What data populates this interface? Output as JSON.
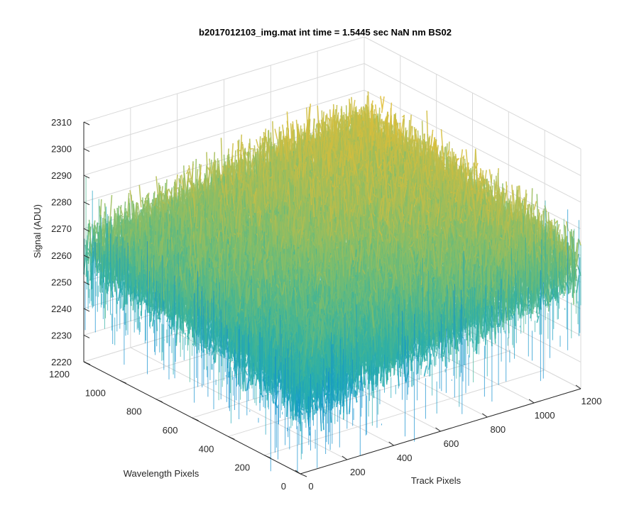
{
  "chart_data": {
    "type": "surface",
    "title": "b2017012103_img.mat int time = 1.5445 sec  NaN nm BS02",
    "xlabel": "Track Pixels",
    "ylabel": "Wavelength Pixels",
    "zlabel": "Signal (ADU)",
    "xlim": [
      0,
      1200
    ],
    "ylim": [
      0,
      1200
    ],
    "zlim": [
      2220,
      2310
    ],
    "x_ticks": [
      "0",
      "200",
      "400",
      "600",
      "800",
      "1000",
      "1200"
    ],
    "y_ticks": [
      "0",
      "200",
      "400",
      "600",
      "800",
      "1000",
      "1200"
    ],
    "z_ticks": [
      "2220",
      "2230",
      "2240",
      "2250",
      "2260",
      "2270",
      "2280",
      "2290",
      "2300",
      "2310"
    ],
    "surface_grid": {
      "x": [
        0,
        200,
        400,
        600,
        800,
        1000,
        1200
      ],
      "y": [
        0,
        200,
        400,
        600,
        800,
        1000,
        1200
      ],
      "z": [
        [
          2248,
          2252,
          2255,
          2258,
          2261,
          2263,
          2266
        ],
        [
          2253,
          2256,
          2259,
          2262,
          2265,
          2267,
          2269
        ],
        [
          2256,
          2259,
          2262,
          2265,
          2267,
          2270,
          2272
        ],
        [
          2259,
          2262,
          2265,
          2268,
          2270,
          2272,
          2274
        ],
        [
          2260,
          2263,
          2266,
          2269,
          2271,
          2273,
          2275
        ],
        [
          2261,
          2264,
          2267,
          2270,
          2272,
          2274,
          2276
        ],
        [
          2262,
          2265,
          2268,
          2271,
          2273,
          2275,
          2277
        ]
      ]
    },
    "noise_amplitude": 15,
    "colormap": [
      "#0f8fcf",
      "#1fa9b8",
      "#3bb39a",
      "#7bbd6e",
      "#c3bd47",
      "#e6be33"
    ],
    "grid": true
  }
}
